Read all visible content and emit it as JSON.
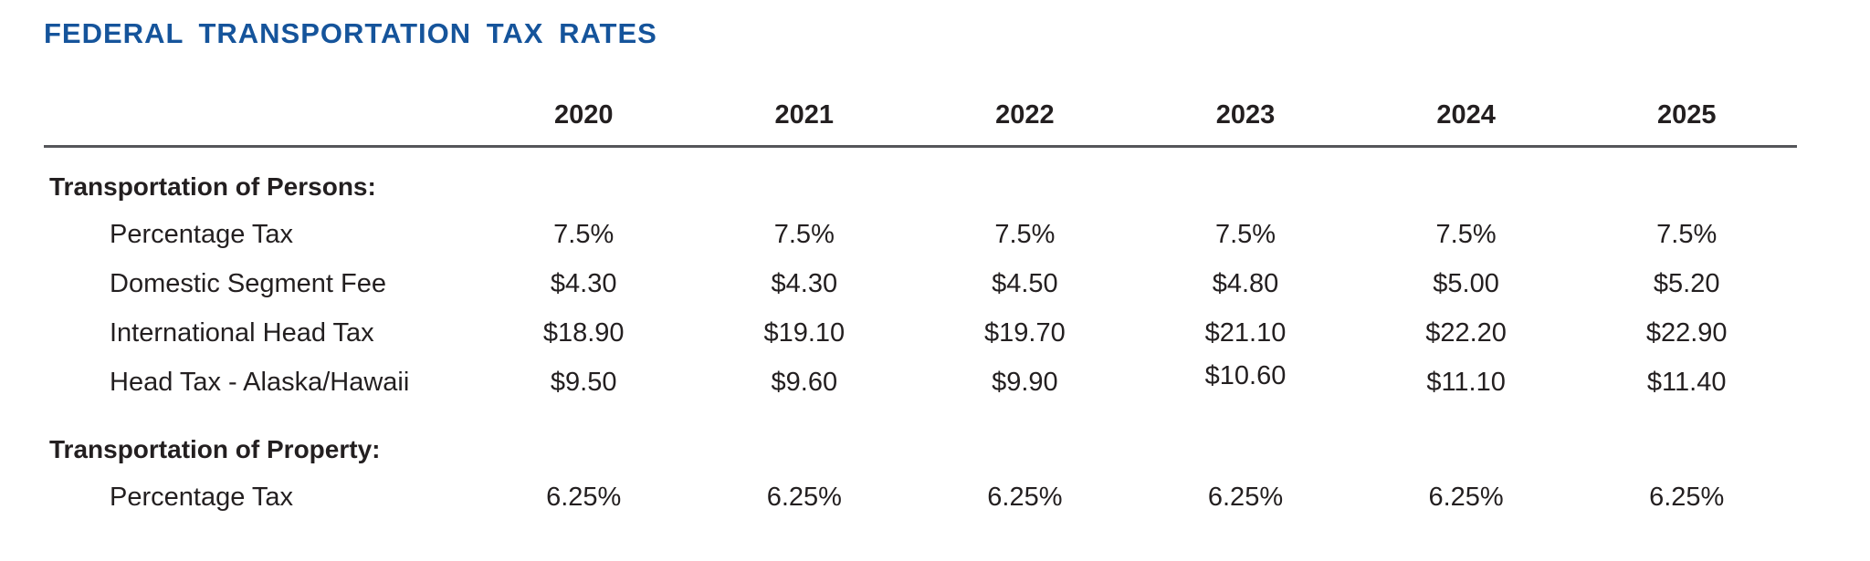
{
  "title": "FEDERAL TRANSPORTATION TAX RATES",
  "colors": {
    "title_blue": "#15549b",
    "body_text": "#231f20",
    "header_rule_gray": "#55565a"
  },
  "table": {
    "years": [
      "2020",
      "2021",
      "2022",
      "2023",
      "2024",
      "2025"
    ],
    "sections": [
      {
        "label": "Transportation of Persons:",
        "rows": [
          {
            "label": "Percentage Tax",
            "values": [
              "7.5%",
              "7.5%",
              "7.5%",
              "7.5%",
              "7.5%",
              "7.5%"
            ]
          },
          {
            "label": "Domestic Segment Fee",
            "values": [
              "$4.30",
              "$4.30",
              "$4.50",
              "$4.80",
              "$5.00",
              "$5.20"
            ]
          },
          {
            "label": "International Head Tax",
            "values": [
              "$18.90",
              "$19.10",
              "$19.70",
              "$21.10",
              "$22.20",
              "$22.90"
            ]
          },
          {
            "label": "Head Tax - Alaska/Hawaii",
            "values": [
              "$9.50",
              "$9.60",
              "$9.90",
              "$10.60",
              "$11.10",
              "$11.40"
            ]
          }
        ]
      },
      {
        "label": "Transportation of Property:",
        "rows": [
          {
            "label": "Percentage Tax",
            "values": [
              "6.25%",
              "6.25%",
              "6.25%",
              "6.25%",
              "6.25%",
              "6.25%"
            ]
          }
        ]
      }
    ]
  }
}
